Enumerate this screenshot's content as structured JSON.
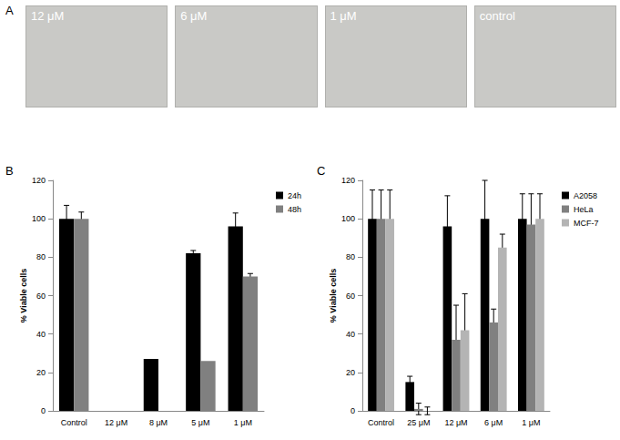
{
  "images": {
    "panel": "A",
    "labels": [
      "12 μM",
      "6 μM",
      "1 μM",
      "control"
    ]
  },
  "chart_data": [
    {
      "type": "bar",
      "panel": "B",
      "categories": [
        "Control",
        "12 μM",
        "8 μM",
        "5 μM",
        "1 μM"
      ],
      "series": [
        {
          "name": "24h",
          "color": "#000000",
          "values": [
            100,
            0,
            27,
            82,
            96
          ],
          "errors": [
            7,
            null,
            null,
            1.5,
            7
          ]
        },
        {
          "name": "48h",
          "color": "#808080",
          "values": [
            100,
            0,
            0,
            26,
            70
          ],
          "errors": [
            3.5,
            null,
            null,
            null,
            1.5
          ]
        }
      ],
      "ylabel": "% Viable cells",
      "ylim": [
        0,
        120
      ],
      "yticks": [
        0,
        20,
        40,
        60,
        80,
        100,
        120
      ],
      "legend": "right",
      "grid": false
    },
    {
      "type": "bar",
      "panel": "C",
      "categories": [
        "Control",
        "25 μM",
        "12 μM",
        "6 μM",
        "1 μM"
      ],
      "series": [
        {
          "name": "A2058",
          "color": "#000000",
          "values": [
            100,
            15,
            96,
            100,
            100
          ],
          "errors": [
            15,
            3,
            16,
            20,
            13
          ]
        },
        {
          "name": "HeLa",
          "color": "#808080",
          "values": [
            100,
            1,
            37,
            46,
            97
          ],
          "errors": [
            15,
            3,
            18,
            7,
            16
          ]
        },
        {
          "name": "MCF-7",
          "color": "#b4b4b4",
          "values": [
            100,
            0,
            42,
            85,
            100
          ],
          "errors": [
            15,
            2,
            19,
            7,
            13
          ]
        }
      ],
      "ylabel": "% Viable cells",
      "ylim": [
        0,
        120
      ],
      "yticks": [
        0,
        20,
        40,
        60,
        80,
        100,
        120
      ],
      "legend": "right",
      "grid": false
    }
  ]
}
